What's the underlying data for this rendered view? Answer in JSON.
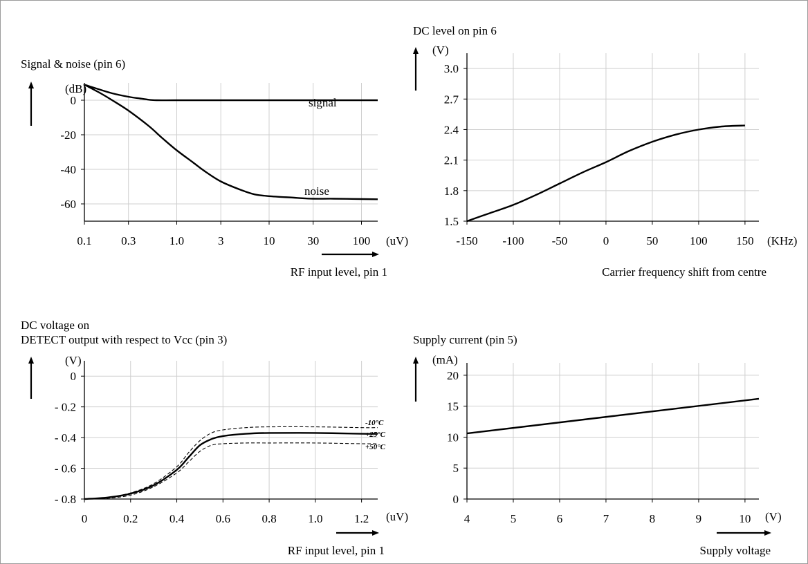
{
  "chart_data": [
    {
      "type": "line",
      "title": "Signal & noise (pin 6)",
      "yunit": "(dB)",
      "xunit": "(uV)",
      "xlabel": "RF input level, pin 1",
      "xscale": "log",
      "xticks": [
        "0.1",
        "0.3",
        "1.0",
        "3",
        "10",
        "30",
        "100"
      ],
      "xtick_values": [
        0.1,
        0.3,
        1.0,
        3,
        10,
        30,
        100
      ],
      "xlim": [
        0.1,
        150
      ],
      "yticks": [
        "0",
        "-20",
        "-40",
        "-60"
      ],
      "ytick_values": [
        0,
        -20,
        -40,
        -60
      ],
      "ylim": [
        -70,
        10
      ],
      "grid": true,
      "series": [
        {
          "name": "signal",
          "x": [
            0.1,
            0.15,
            0.2,
            0.3,
            0.4,
            0.5,
            0.6,
            1.0,
            3,
            10,
            30,
            100,
            150
          ],
          "y": [
            9,
            6,
            4,
            2,
            1,
            0.3,
            0,
            0,
            0,
            0,
            0,
            0,
            0
          ]
        },
        {
          "name": "noise",
          "x": [
            0.1,
            0.15,
            0.2,
            0.3,
            0.5,
            0.7,
            1.0,
            1.5,
            2,
            3,
            5,
            7,
            10,
            20,
            30,
            50,
            100,
            150
          ],
          "y": [
            9,
            4,
            0,
            -6,
            -15,
            -22,
            -29,
            -36,
            -41,
            -47,
            -52,
            -54.5,
            -55.5,
            -56.5,
            -57,
            -57,
            -57.2,
            -57.3
          ]
        }
      ]
    },
    {
      "type": "line",
      "title": "DC level on pin 6",
      "yunit": "(V)",
      "xunit": "(KHz)",
      "xlabel": "Carrier frequency shift from centre",
      "xticks": [
        "-150",
        "-100",
        "-50",
        "0",
        "50",
        "100",
        "150"
      ],
      "xtick_values": [
        -150,
        -100,
        -50,
        0,
        50,
        100,
        150
      ],
      "xlim": [
        -150,
        165
      ],
      "yticks": [
        "1.5",
        "1.8",
        "2.1",
        "2.4",
        "2.7",
        "3.0"
      ],
      "ytick_values": [
        1.5,
        1.8,
        2.1,
        2.4,
        2.7,
        3.0
      ],
      "ylim": [
        1.5,
        3.15
      ],
      "grid": true,
      "series": [
        {
          "x": [
            -150,
            -125,
            -100,
            -75,
            -50,
            -25,
            0,
            25,
            50,
            75,
            100,
            125,
            150
          ],
          "y": [
            1.5,
            1.58,
            1.66,
            1.76,
            1.87,
            1.98,
            2.08,
            2.19,
            2.28,
            2.35,
            2.4,
            2.43,
            2.44
          ]
        }
      ]
    },
    {
      "type": "line",
      "title": "DC voltage on",
      "subtitle": "DETECT output with respect to Vcc (pin 3)",
      "yunit": "(V)",
      "xunit": "(uV)",
      "xlabel": "RF input level, pin 1",
      "xticks": [
        "0",
        "0.2",
        "0.4",
        "0.6",
        "0.8",
        "1.0",
        "1.2"
      ],
      "xtick_values": [
        0,
        0.2,
        0.4,
        0.6,
        0.8,
        1.0,
        1.2
      ],
      "xlim": [
        0,
        1.27
      ],
      "yticks": [
        "0",
        "- 0.2",
        "- 0.4",
        "- 0.6",
        "- 0.8"
      ],
      "ytick_values": [
        0,
        -0.2,
        -0.4,
        -0.6,
        -0.8
      ],
      "ylim": [
        -0.8,
        0.1
      ],
      "grid": true,
      "series": [
        {
          "name": "-10°C",
          "style": "dashed",
          "x": [
            0,
            0.1,
            0.2,
            0.3,
            0.4,
            0.45,
            0.5,
            0.55,
            0.6,
            0.7,
            0.8,
            1.0,
            1.2,
            1.27
          ],
          "y": [
            -0.8,
            -0.79,
            -0.76,
            -0.7,
            -0.59,
            -0.5,
            -0.42,
            -0.37,
            -0.35,
            -0.335,
            -0.33,
            -0.33,
            -0.335,
            -0.335
          ]
        },
        {
          "name": "+25°C",
          "style": "solid",
          "x": [
            0,
            0.1,
            0.2,
            0.3,
            0.4,
            0.45,
            0.5,
            0.55,
            0.6,
            0.7,
            0.8,
            1.0,
            1.2,
            1.27
          ],
          "y": [
            -0.8,
            -0.79,
            -0.765,
            -0.71,
            -0.61,
            -0.53,
            -0.45,
            -0.41,
            -0.39,
            -0.375,
            -0.37,
            -0.37,
            -0.375,
            -0.375
          ]
        },
        {
          "name": "+50°C",
          "style": "dashed",
          "x": [
            0,
            0.1,
            0.2,
            0.3,
            0.4,
            0.45,
            0.5,
            0.55,
            0.6,
            0.7,
            0.8,
            1.0,
            1.2,
            1.27
          ],
          "y": [
            -0.8,
            -0.795,
            -0.775,
            -0.72,
            -0.63,
            -0.56,
            -0.49,
            -0.45,
            -0.44,
            -0.435,
            -0.435,
            -0.435,
            -0.44,
            -0.44
          ]
        }
      ],
      "legend": [
        "-10°C",
        "+25°C",
        "+50°C"
      ]
    },
    {
      "type": "line",
      "title": "Supply current (pin 5)",
      "yunit": "(mA)",
      "xunit": "(V)",
      "xlabel": "Supply voltage",
      "xticks": [
        "4",
        "5",
        "6",
        "7",
        "8",
        "9",
        "10"
      ],
      "xtick_values": [
        4,
        5,
        6,
        7,
        8,
        9,
        10
      ],
      "xlim": [
        4,
        10.3
      ],
      "yticks": [
        "0",
        "5",
        "10",
        "15",
        "20"
      ],
      "ytick_values": [
        0,
        5,
        10,
        15,
        20
      ],
      "ylim": [
        0,
        22
      ],
      "grid": true,
      "series": [
        {
          "x": [
            4,
            10.3
          ],
          "y": [
            10.6,
            16.2
          ]
        }
      ]
    }
  ]
}
